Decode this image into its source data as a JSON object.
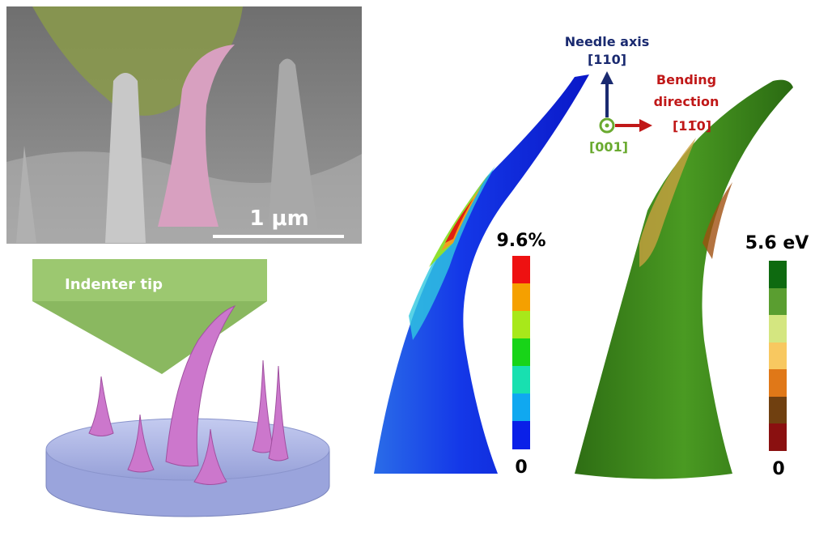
{
  "sem_image": {
    "scale_label": "1 μm"
  },
  "schematic": {
    "indenter_label": "Indenter tip"
  },
  "axes": {
    "needle_axis": {
      "name": "Needle axis",
      "direction": "[110]"
    },
    "bending": {
      "name_lines": [
        "Bending",
        "direction"
      ],
      "direction": "[11̅0]"
    },
    "normal": {
      "direction": "[001]"
    }
  },
  "strain_map": {
    "legend": {
      "max": "9.6%",
      "min": "0"
    }
  },
  "energy_map": {
    "legend": {
      "max": "5.6 eV",
      "min": "0"
    }
  }
}
